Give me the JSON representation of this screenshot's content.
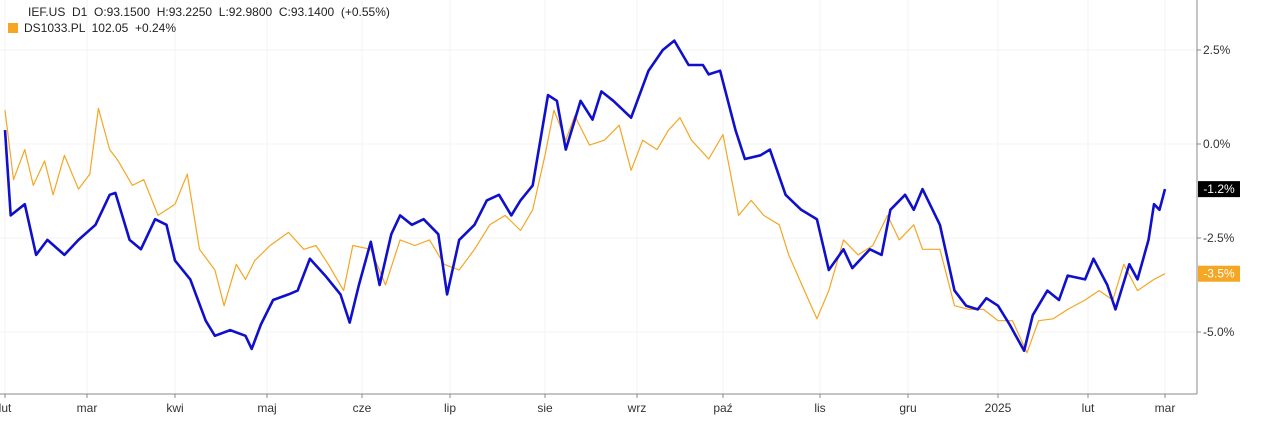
{
  "legend": {
    "main": "IEF.US  D1  O:93.1500  H:93.2250  L:92.9800  C:93.1400  (+0.55%)",
    "compare": "DS1033.PL  102.05  +0.24%"
  },
  "chart_data": {
    "type": "line",
    "title": "",
    "xlabel": "",
    "ylabel": "",
    "ylim": [
      -6.5,
      3.8
    ],
    "y_ticks": [
      2.5,
      0.0,
      -2.5,
      -5.0
    ],
    "y_tick_labels": [
      "2.5%",
      "0.0%",
      "-2.5%",
      "-5.0%"
    ],
    "x_tick_labels": [
      "lut",
      "mar",
      "kwi",
      "maj",
      "cze",
      "lip",
      "sie",
      "wrz",
      "paź",
      "lis",
      "gru",
      "2025",
      "lut",
      "mar"
    ],
    "x_tick_dates": [
      "2024-02-01",
      "2024-03-01",
      "2024-04-01",
      "2024-05-01",
      "2024-06-01",
      "2024-07-01",
      "2024-08-01",
      "2024-09-01",
      "2024-10-01",
      "2024-11-01",
      "2024-12-01",
      "2025-01-01",
      "2025-02-01",
      "2025-03-01"
    ],
    "grid": true,
    "legend_position": "top-left",
    "series": [
      {
        "name": "IEF.US",
        "color": "#1010cc",
        "last_label": "-1.2%",
        "points": [
          [
            "2024-02-01",
            0.37
          ],
          [
            "2024-02-03",
            -1.9
          ],
          [
            "2024-02-08",
            -1.6
          ],
          [
            "2024-02-12",
            -2.95
          ],
          [
            "2024-02-16",
            -2.55
          ],
          [
            "2024-02-22",
            -2.95
          ],
          [
            "2024-02-27",
            -2.55
          ],
          [
            "2024-03-04",
            -2.15
          ],
          [
            "2024-03-09",
            -1.35
          ],
          [
            "2024-03-11",
            -1.3
          ],
          [
            "2024-03-16",
            -2.55
          ],
          [
            "2024-03-20",
            -2.8
          ],
          [
            "2024-03-25",
            -2.0
          ],
          [
            "2024-03-29",
            -2.15
          ],
          [
            "2024-04-01",
            -3.1
          ],
          [
            "2024-04-06",
            -3.6
          ],
          [
            "2024-04-11",
            -4.7
          ],
          [
            "2024-04-14",
            -5.1
          ],
          [
            "2024-04-19",
            -4.95
          ],
          [
            "2024-04-24",
            -5.1
          ],
          [
            "2024-04-26",
            -5.45
          ],
          [
            "2024-04-29",
            -4.8
          ],
          [
            "2024-05-03",
            -4.15
          ],
          [
            "2024-05-08",
            -4.0
          ],
          [
            "2024-05-11",
            -3.9
          ],
          [
            "2024-05-15",
            -3.05
          ],
          [
            "2024-05-20",
            -3.5
          ],
          [
            "2024-05-25",
            -4.0
          ],
          [
            "2024-05-28",
            -4.75
          ],
          [
            "2024-05-31",
            -3.75
          ],
          [
            "2024-06-04",
            -2.6
          ],
          [
            "2024-06-07",
            -3.75
          ],
          [
            "2024-06-11",
            -2.4
          ],
          [
            "2024-06-14",
            -1.9
          ],
          [
            "2024-06-18",
            -2.15
          ],
          [
            "2024-06-22",
            -2.0
          ],
          [
            "2024-06-27",
            -2.4
          ],
          [
            "2024-06-30",
            -4.0
          ],
          [
            "2024-07-04",
            -2.55
          ],
          [
            "2024-07-09",
            -2.15
          ],
          [
            "2024-07-13",
            -1.5
          ],
          [
            "2024-07-17",
            -1.35
          ],
          [
            "2024-07-21",
            -1.9
          ],
          [
            "2024-07-24",
            -1.5
          ],
          [
            "2024-07-28",
            -1.1
          ],
          [
            "2024-08-02",
            1.3
          ],
          [
            "2024-08-05",
            1.15
          ],
          [
            "2024-08-08",
            -0.15
          ],
          [
            "2024-08-13",
            1.15
          ],
          [
            "2024-08-17",
            0.65
          ],
          [
            "2024-08-20",
            1.4
          ],
          [
            "2024-08-24",
            1.15
          ],
          [
            "2024-08-30",
            0.7
          ],
          [
            "2024-09-05",
            1.95
          ],
          [
            "2024-09-10",
            2.5
          ],
          [
            "2024-09-14",
            2.75
          ],
          [
            "2024-09-19",
            2.1
          ],
          [
            "2024-09-24",
            2.1
          ],
          [
            "2024-09-26",
            1.85
          ],
          [
            "2024-09-30",
            1.95
          ],
          [
            "2024-10-05",
            0.37
          ],
          [
            "2024-10-08",
            -0.4
          ],
          [
            "2024-10-13",
            -0.3
          ],
          [
            "2024-10-16",
            -0.15
          ],
          [
            "2024-10-21",
            -1.35
          ],
          [
            "2024-10-26",
            -1.75
          ],
          [
            "2024-10-31",
            -2.0
          ],
          [
            "2024-11-04",
            -3.35
          ],
          [
            "2024-11-09",
            -2.8
          ],
          [
            "2024-11-12",
            -3.3
          ],
          [
            "2024-11-18",
            -2.8
          ],
          [
            "2024-11-22",
            -2.95
          ],
          [
            "2024-11-25",
            -1.75
          ],
          [
            "2024-11-30",
            -1.35
          ],
          [
            "2024-12-03",
            -1.75
          ],
          [
            "2024-12-06",
            -1.2
          ],
          [
            "2024-12-12",
            -2.15
          ],
          [
            "2024-12-17",
            -3.9
          ],
          [
            "2024-12-21",
            -4.3
          ],
          [
            "2024-12-25",
            -4.4
          ],
          [
            "2024-12-28",
            -4.1
          ],
          [
            "2025-01-01",
            -4.3
          ],
          [
            "2025-01-05",
            -4.8
          ],
          [
            "2025-01-10",
            -5.5
          ],
          [
            "2025-01-13",
            -4.55
          ],
          [
            "2025-01-18",
            -3.9
          ],
          [
            "2025-01-22",
            -4.15
          ],
          [
            "2025-01-25",
            -3.5
          ],
          [
            "2025-01-31",
            -3.6
          ],
          [
            "2025-02-03",
            -3.05
          ],
          [
            "2025-02-08",
            -3.75
          ],
          [
            "2025-02-11",
            -4.4
          ],
          [
            "2025-02-16",
            -3.2
          ],
          [
            "2025-02-19",
            -3.6
          ],
          [
            "2025-02-23",
            -2.55
          ],
          [
            "2025-02-25",
            -1.6
          ],
          [
            "2025-02-27",
            -1.75
          ],
          [
            "2025-03-01",
            -1.2
          ]
        ]
      },
      {
        "name": "DS1033.PL",
        "color": "#f5a623",
        "last_label": "-3.5%",
        "points": [
          [
            "2024-02-01",
            0.9
          ],
          [
            "2024-02-04",
            -0.95
          ],
          [
            "2024-02-08",
            -0.15
          ],
          [
            "2024-02-11",
            -1.1
          ],
          [
            "2024-02-15",
            -0.45
          ],
          [
            "2024-02-18",
            -1.35
          ],
          [
            "2024-02-22",
            -0.3
          ],
          [
            "2024-02-27",
            -1.2
          ],
          [
            "2024-03-02",
            -0.8
          ],
          [
            "2024-03-05",
            0.95
          ],
          [
            "2024-03-09",
            -0.15
          ],
          [
            "2024-03-12",
            -0.45
          ],
          [
            "2024-03-17",
            -1.1
          ],
          [
            "2024-03-21",
            -0.95
          ],
          [
            "2024-03-26",
            -1.9
          ],
          [
            "2024-04-01",
            -1.6
          ],
          [
            "2024-04-05",
            -0.8
          ],
          [
            "2024-04-09",
            -2.8
          ],
          [
            "2024-04-14",
            -3.35
          ],
          [
            "2024-04-17",
            -4.3
          ],
          [
            "2024-04-21",
            -3.2
          ],
          [
            "2024-04-24",
            -3.6
          ],
          [
            "2024-04-27",
            -3.1
          ],
          [
            "2024-05-02",
            -2.7
          ],
          [
            "2024-05-08",
            -2.35
          ],
          [
            "2024-05-13",
            -2.8
          ],
          [
            "2024-05-17",
            -2.7
          ],
          [
            "2024-05-21",
            -3.2
          ],
          [
            "2024-05-26",
            -3.9
          ],
          [
            "2024-05-29",
            -2.7
          ],
          [
            "2024-06-04",
            -2.8
          ],
          [
            "2024-06-09",
            -3.75
          ],
          [
            "2024-06-14",
            -2.55
          ],
          [
            "2024-06-19",
            -2.7
          ],
          [
            "2024-06-24",
            -2.55
          ],
          [
            "2024-06-29",
            -3.2
          ],
          [
            "2024-07-04",
            -3.35
          ],
          [
            "2024-07-09",
            -2.8
          ],
          [
            "2024-07-14",
            -2.15
          ],
          [
            "2024-07-19",
            -1.9
          ],
          [
            "2024-07-24",
            -2.3
          ],
          [
            "2024-07-28",
            -1.75
          ],
          [
            "2024-08-01",
            -0.3
          ],
          [
            "2024-08-04",
            0.9
          ],
          [
            "2024-08-08",
            0.1
          ],
          [
            "2024-08-11",
            0.75
          ],
          [
            "2024-08-16",
            -0.03
          ],
          [
            "2024-08-21",
            0.1
          ],
          [
            "2024-08-26",
            0.5
          ],
          [
            "2024-08-30",
            -0.7
          ],
          [
            "2024-09-03",
            0.1
          ],
          [
            "2024-09-08",
            -0.15
          ],
          [
            "2024-09-12",
            0.37
          ],
          [
            "2024-09-16",
            0.7
          ],
          [
            "2024-09-20",
            0.1
          ],
          [
            "2024-09-26",
            -0.4
          ],
          [
            "2024-10-01",
            0.25
          ],
          [
            "2024-10-06",
            -1.9
          ],
          [
            "2024-10-10",
            -1.5
          ],
          [
            "2024-10-14",
            -1.9
          ],
          [
            "2024-10-19",
            -2.15
          ],
          [
            "2024-10-22",
            -2.95
          ],
          [
            "2024-10-27",
            -3.9
          ],
          [
            "2024-10-31",
            -4.65
          ],
          [
            "2024-11-04",
            -3.9
          ],
          [
            "2024-11-09",
            -2.55
          ],
          [
            "2024-11-14",
            -2.95
          ],
          [
            "2024-11-19",
            -2.7
          ],
          [
            "2024-11-24",
            -1.9
          ],
          [
            "2024-11-28",
            -2.55
          ],
          [
            "2024-12-03",
            -2.15
          ],
          [
            "2024-12-06",
            -2.8
          ],
          [
            "2024-12-12",
            -2.8
          ],
          [
            "2024-12-17",
            -4.3
          ],
          [
            "2024-12-22",
            -4.4
          ],
          [
            "2024-12-27",
            -4.4
          ],
          [
            "2025-01-01",
            -4.7
          ],
          [
            "2025-01-06",
            -4.7
          ],
          [
            "2025-01-11",
            -5.55
          ],
          [
            "2025-01-15",
            -4.7
          ],
          [
            "2025-01-20",
            -4.65
          ],
          [
            "2025-01-25",
            -4.4
          ],
          [
            "2025-01-31",
            -4.15
          ],
          [
            "2025-02-05",
            -3.9
          ],
          [
            "2025-02-10",
            -4.15
          ],
          [
            "2025-02-14",
            -3.2
          ],
          [
            "2025-02-19",
            -3.9
          ],
          [
            "2025-02-25",
            -3.6
          ],
          [
            "2025-03-01",
            -3.45
          ]
        ]
      }
    ]
  }
}
